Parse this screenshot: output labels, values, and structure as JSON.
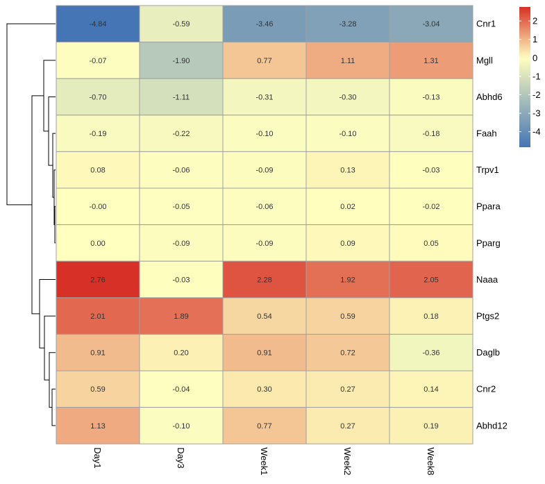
{
  "chart_data": {
    "type": "heatmap",
    "rows": [
      "Cnr1",
      "Mgll",
      "Abhd6",
      "Faah",
      "Trpv1",
      "Ppara",
      "Pparg",
      "Naaa",
      "Ptgs2",
      "Daglb",
      "Cnr2",
      "Abhd12"
    ],
    "columns": [
      "Day1",
      "Day3",
      "Week1",
      "Week2",
      "Week8"
    ],
    "values": [
      [
        -4.84,
        -0.59,
        -3.46,
        -3.28,
        -3.04
      ],
      [
        -0.07,
        -1.9,
        0.77,
        1.11,
        1.31
      ],
      [
        -0.7,
        -1.11,
        -0.31,
        -0.3,
        -0.13
      ],
      [
        -0.19,
        -0.22,
        -0.1,
        -0.1,
        -0.18
      ],
      [
        0.08,
        -0.06,
        -0.09,
        0.13,
        -0.03
      ],
      [
        -0.0,
        -0.05,
        -0.06,
        0.02,
        -0.02
      ],
      [
        0.0,
        -0.09,
        -0.09,
        0.09,
        0.05
      ],
      [
        2.76,
        -0.03,
        2.28,
        1.92,
        2.05
      ],
      [
        2.01,
        1.89,
        0.54,
        0.59,
        0.18
      ],
      [
        0.91,
        0.2,
        0.91,
        0.72,
        -0.36
      ],
      [
        0.59,
        -0.04,
        0.3,
        0.27,
        0.14
      ],
      [
        1.13,
        -0.1,
        0.77,
        0.27,
        0.19
      ]
    ],
    "value_labels": [
      [
        "-4.84",
        "-0.59",
        "-3.46",
        "-3.28",
        "-3.04"
      ],
      [
        "-0.07",
        "-1.90",
        "0.77",
        "1.11",
        "1.31"
      ],
      [
        "-0.70",
        "-1.11",
        "-0.31",
        "-0.30",
        "-0.13"
      ],
      [
        "-0.19",
        "-0.22",
        "-0.10",
        "-0.10",
        "-0.18"
      ],
      [
        "0.08",
        "-0.06",
        "-0.09",
        "0.13",
        "-0.03"
      ],
      [
        "-0.00",
        "-0.05",
        "-0.06",
        "0.02",
        "-0.02"
      ],
      [
        "0.00",
        "-0.09",
        "-0.09",
        "0.09",
        "0.05"
      ],
      [
        "2.76",
        "-0.03",
        "2.28",
        "1.92",
        "2.05"
      ],
      [
        "2.01",
        "1.89",
        "0.54",
        "0.59",
        "0.18"
      ],
      [
        "0.91",
        "0.20",
        "0.91",
        "0.72",
        "-0.36"
      ],
      [
        "0.59",
        "-0.04",
        "0.30",
        "0.27",
        "0.14"
      ],
      [
        "1.13",
        "-0.10",
        "0.77",
        "0.27",
        "0.19"
      ]
    ],
    "color_scale": {
      "min": -4.84,
      "max": 2.76,
      "low_color": "#4575b4",
      "mid_color": "#ffffbf",
      "high_color": "#d73027"
    },
    "legend": {
      "ticks": [
        2,
        1,
        0,
        -1,
        -2,
        -3,
        -4
      ],
      "tick_labels": [
        "2",
        "1",
        "0",
        "-1",
        "-2",
        "-3",
        "-4"
      ],
      "position": "top-right"
    },
    "row_dendrogram": true,
    "grid": true,
    "cell_border_color": "#a0a0a0"
  }
}
